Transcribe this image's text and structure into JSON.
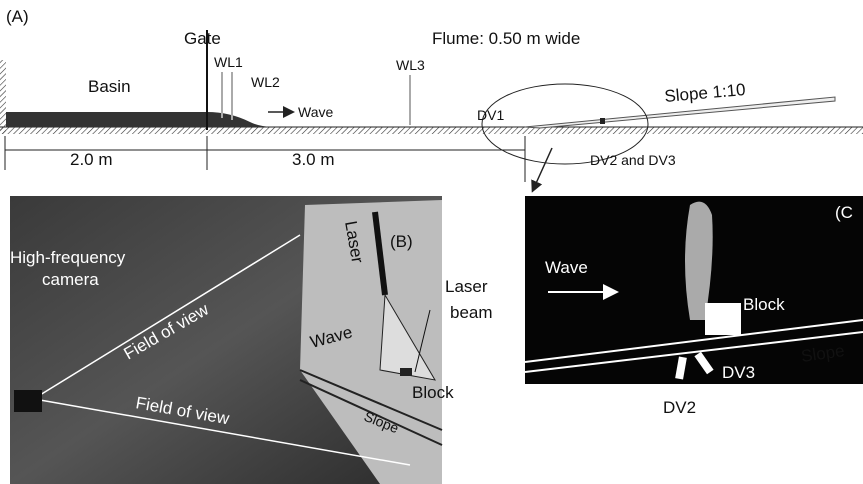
{
  "panel_a": {
    "label": "(A)",
    "gate": "Gate",
    "flume": "Flume: 0.50 m wide",
    "basin": "Basin",
    "gauges": [
      "WL1",
      "WL2",
      "WL3"
    ],
    "wave": "Wave",
    "dv1": "DV1",
    "slope": "Slope 1:10",
    "dv2_dv3": "DV2 and DV3",
    "dimensions": [
      "2.0 m",
      "3.0 m"
    ]
  },
  "panel_b": {
    "label": "(B)",
    "camera": [
      "High-frequency",
      "camera"
    ],
    "field_of_view": [
      "Field of view",
      "Field of view"
    ],
    "laser": "Laser",
    "laser_beam": [
      "Laser",
      "beam"
    ],
    "wave": "Wave",
    "block": "Block",
    "slope": "Slope"
  },
  "panel_c": {
    "label": "(C",
    "wave": "Wave",
    "block": "Block",
    "slope": "Slope",
    "dv2": "DV2",
    "dv3": "DV3"
  }
}
